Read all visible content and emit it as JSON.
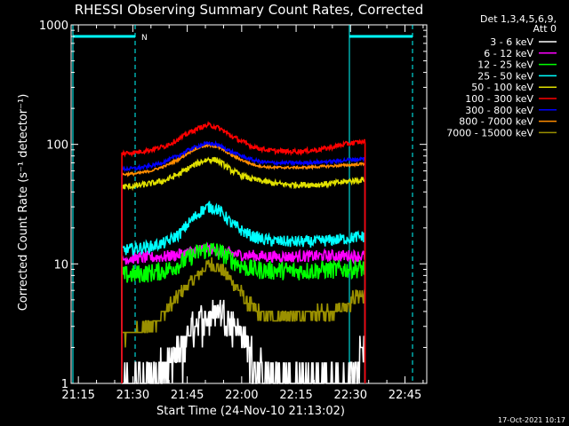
{
  "chart_data": {
    "type": "line",
    "title": "RHESSI Observing Summary Count Rates, Corrected",
    "xlabel": "Start Time (24-Nov-10 21:13:02)",
    "ylabel": "Corrected Count Rate (s⁻¹ detector⁻¹)",
    "y_scale": "log",
    "ylim": [
      1,
      1000
    ],
    "xlim_minutes": [
      0,
      98
    ],
    "x_tick_labels": [
      "21:15",
      "21:30",
      "21:45",
      "22:00",
      "22:15",
      "22:30",
      "22:45"
    ],
    "x_ticks_minutes": [
      2,
      17,
      32,
      47,
      62,
      77,
      92
    ],
    "y_tick_labels": [
      "1",
      "10",
      "100",
      "1000"
    ],
    "y_ticks": [
      1,
      10,
      100,
      1000
    ],
    "legend_header": [
      "Det 1,3,4,5,6,9,",
      "Att 0"
    ],
    "legend_position": "right",
    "footer_date": "17-Oct-2021 10:17",
    "annotations": [
      {
        "label": "N",
        "color": "#00ffff"
      }
    ],
    "series": [
      {
        "name": "3 - 6 keV",
        "color": "#ffffff",
        "x": [
          14,
          16,
          20,
          24,
          28,
          30,
          32,
          34,
          36,
          38,
          40,
          42,
          44,
          46,
          48,
          50,
          52,
          55,
          58,
          62,
          66,
          70,
          74,
          78,
          80,
          81
        ],
        "values": [
          1.0,
          1.25,
          1.25,
          1.3,
          1.6,
          2.0,
          2.6,
          3.3,
          3.5,
          3.8,
          4.2,
          4.0,
          3.5,
          3.0,
          2.4,
          1.8,
          1.4,
          1.2,
          1.15,
          1.15,
          1.15,
          1.15,
          1.15,
          1.2,
          2.3,
          2.5
        ]
      },
      {
        "name": "6 - 12 keV",
        "color": "#ff00ff",
        "x": [
          14,
          18,
          22,
          26,
          30,
          34,
          36,
          38,
          40,
          42,
          44,
          48,
          52,
          56,
          60,
          64,
          68,
          72,
          76,
          80,
          81
        ],
        "values": [
          11,
          11.2,
          11.3,
          11.5,
          12,
          12.8,
          13.2,
          13.5,
          13.0,
          12.6,
          12.2,
          11.8,
          11.6,
          11.5,
          11.5,
          11.6,
          11.6,
          11.7,
          11.7,
          11.6,
          11.6
        ]
      },
      {
        "name": "12 - 25 keV",
        "color": "#00ff00",
        "x": [
          14,
          18,
          22,
          26,
          30,
          33,
          36,
          38,
          40,
          42,
          44,
          46,
          48,
          50,
          54,
          58,
          62,
          66,
          70,
          74,
          78,
          81
        ],
        "values": [
          8,
          8.2,
          8.4,
          8.8,
          10,
          11.5,
          12.8,
          13.3,
          12.8,
          12.0,
          11.0,
          10.0,
          9.3,
          9.0,
          8.8,
          8.8,
          8.7,
          8.8,
          8.9,
          9.0,
          9.1,
          9.2
        ]
      },
      {
        "name": "25 - 50 keV",
        "color": "#00ffff",
        "x": [
          14,
          18,
          22,
          26,
          30,
          33,
          36,
          38,
          40,
          42,
          44,
          47,
          50,
          53,
          56,
          60,
          64,
          68,
          72,
          76,
          79,
          81
        ],
        "values": [
          13,
          13.5,
          14,
          15,
          18,
          23,
          28,
          30,
          29,
          26,
          22,
          19,
          17,
          16,
          15.5,
          15.3,
          15.3,
          15.4,
          15.8,
          16.3,
          16.8,
          17
        ]
      },
      {
        "name": "50 - 100 keV",
        "color": "#e0e000",
        "x": [
          14,
          18,
          22,
          26,
          30,
          33,
          36,
          38,
          40,
          42,
          44,
          47,
          50,
          53,
          56,
          60,
          64,
          68,
          72,
          76,
          79,
          81
        ],
        "values": [
          44,
          45,
          47,
          50,
          57,
          65,
          72,
          75,
          74,
          68,
          61,
          55,
          51,
          49,
          47,
          46,
          46,
          46,
          47,
          49,
          50,
          51
        ]
      },
      {
        "name": "100 - 300 keV",
        "color": "#ff0000",
        "x": [
          14,
          18,
          22,
          26,
          30,
          33,
          36,
          38,
          40,
          42,
          44,
          47,
          50,
          53,
          56,
          60,
          64,
          68,
          72,
          76,
          79,
          81
        ],
        "values": [
          84,
          86,
          90,
          97,
          112,
          128,
          140,
          145,
          140,
          130,
          118,
          106,
          96,
          91,
          88,
          87,
          88,
          90,
          95,
          101,
          104,
          106
        ]
      },
      {
        "name": "300 - 800 keV",
        "color": "#0000ff",
        "x": [
          14,
          18,
          22,
          26,
          30,
          33,
          36,
          38,
          40,
          42,
          44,
          47,
          50,
          53,
          56,
          60,
          64,
          68,
          72,
          76,
          79,
          81
        ],
        "values": [
          62,
          63,
          66,
          72,
          82,
          92,
          99,
          102,
          100,
          94,
          87,
          80,
          74,
          71,
          70,
          70,
          70,
          71,
          72,
          74,
          75,
          76
        ]
      },
      {
        "name": "800 - 7000 keV",
        "color": "#ff8c00",
        "x": [
          14,
          18,
          22,
          26,
          30,
          33,
          36,
          38,
          40,
          42,
          44,
          47,
          50,
          53,
          56,
          60,
          64,
          68,
          72,
          76,
          79,
          81
        ],
        "values": [
          56,
          57,
          60,
          66,
          76,
          88,
          96,
          98,
          96,
          90,
          82,
          74,
          68,
          65,
          64,
          64,
          64,
          65,
          66,
          67,
          68,
          69
        ]
      },
      {
        "name": "7000 - 15000 keV",
        "color": "#9a9000",
        "x": [
          14,
          17,
          20,
          23,
          26,
          29,
          32,
          35,
          37,
          39,
          41,
          43,
          45,
          47,
          49,
          52,
          56,
          60,
          64,
          68,
          72,
          76,
          79,
          81
        ],
        "values": [
          2.5,
          2.6,
          2.8,
          3.2,
          4.0,
          5.2,
          6.5,
          8.0,
          9.5,
          10.0,
          9.0,
          8.0,
          6.8,
          5.6,
          4.6,
          3.8,
          3.6,
          3.6,
          3.7,
          3.8,
          4.0,
          4.6,
          5.4,
          5.6
        ]
      }
    ]
  }
}
